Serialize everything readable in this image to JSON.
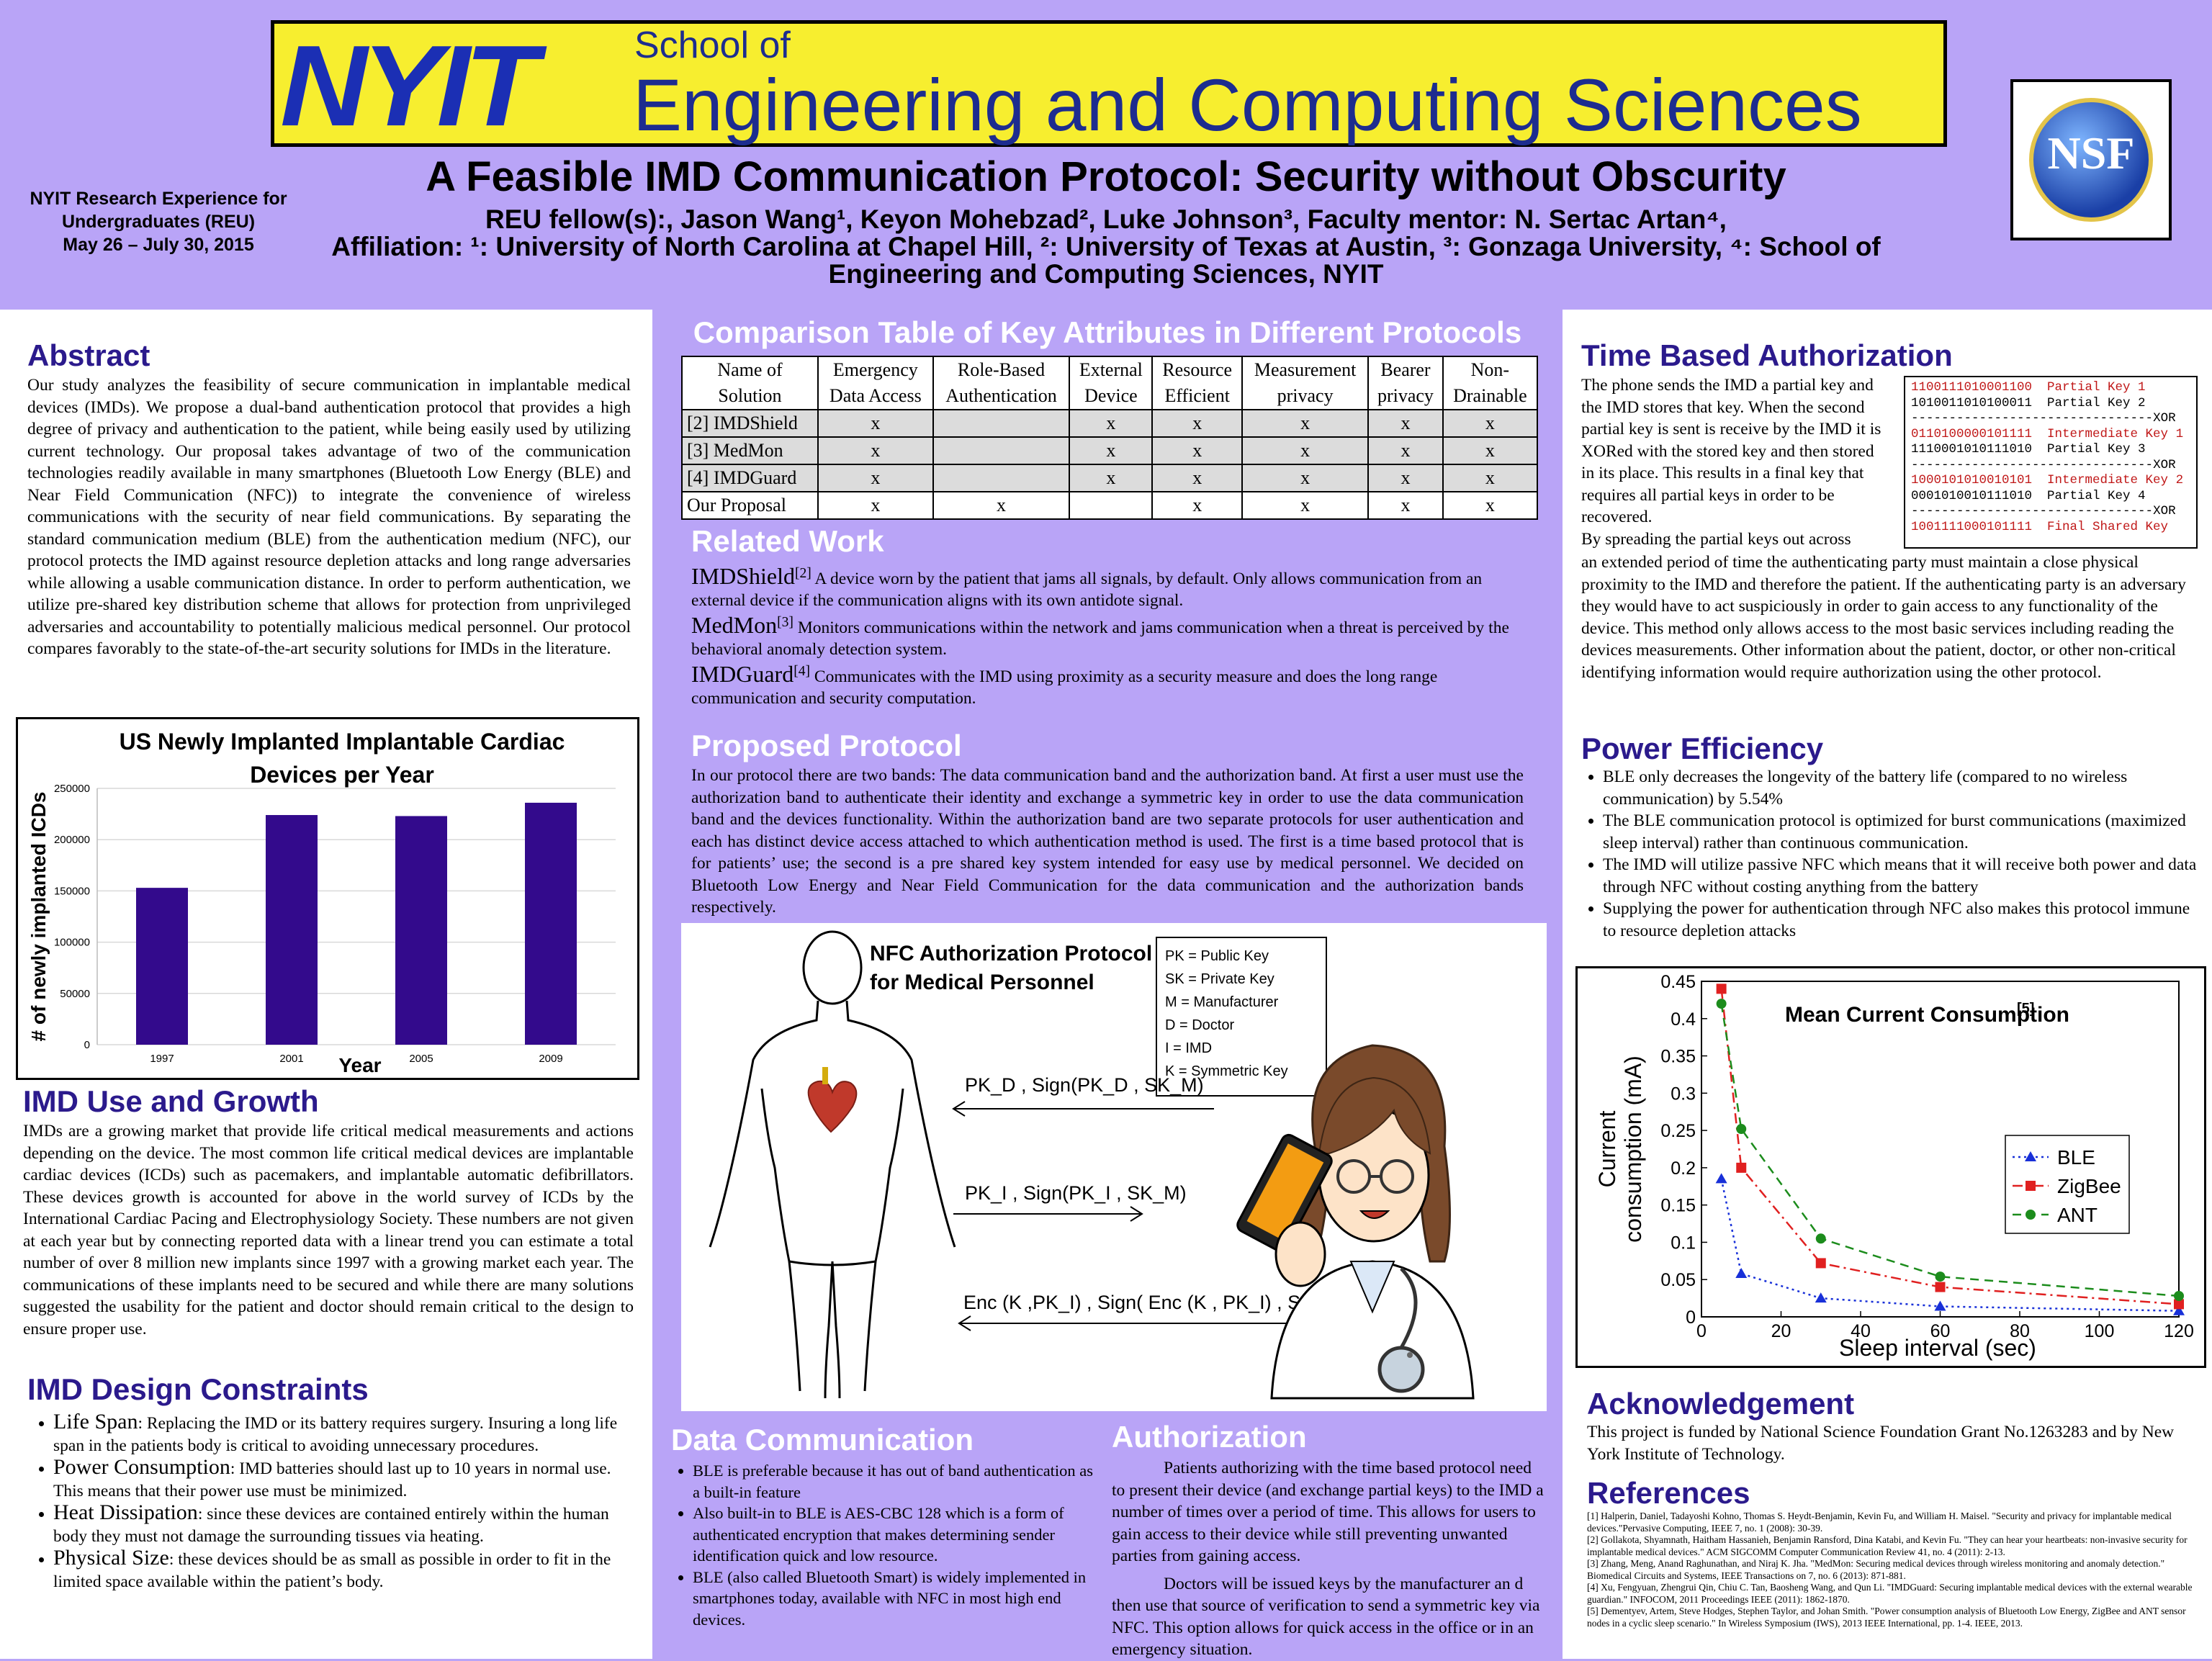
{
  "header": {
    "logo_text": "NYIT",
    "school_of": "School of",
    "school_name": "Engineering and Computing Sciences",
    "nsf_logo_text": "NSF",
    "reu_lines": [
      "NYIT Research Experience for",
      "Undergraduates (REU)",
      "May 26 – July 30, 2015"
    ],
    "title": "A Feasible IMD Communication Protocol: Security without Obscurity",
    "authors_prefix": "REU fellow(s):, Jason Wang",
    "authors_line": "REU fellow(s):, Jason Wang¹, Keyon Mohebzad², Luke Johnson³, Faculty mentor: N. Sertac Artan⁴,",
    "affiliation_line1": "Affiliation: ¹: University of North Carolina at Chapel Hill, ²: University of Texas at Austin, ³: Gonzaga University, ⁴: School of",
    "affiliation_line2": "Engineering and Computing Sciences, NYIT"
  },
  "abstract": {
    "heading": "Abstract",
    "text": "Our study analyzes the feasibility of secure communication in implantable medical devices (IMDs). We propose a dual-band authentication protocol that provides a high degree of privacy and authentication to the patient, while being easily used by utilizing current technology. Our proposal takes advantage of two of the communication technologies readily available in many smartphones (Bluetooth Low Energy (BLE) and Near Field Communication (NFC)) to integrate the convenience of wireless communications with the security of near field communications. By separating the standard communication medium (BLE) from the authentication medium (NFC), our protocol protects the IMD against resource depletion attacks and long range adversaries while allowing a usable communication distance. In order to perform authentication, we utilize pre-shared key distribution scheme that allows for protection from unprivileged adversaries and accountability to potentially malicious medical personnel. Our protocol compares favorably to the state-of-the-art security solutions for IMDs in the literature."
  },
  "chart_data": [
    {
      "type": "bar",
      "title": "US Newly Implanted Implantable Cardiac Devices per Year",
      "xlabel": "Year",
      "ylabel": "# of newly implanted ICDs",
      "categories": [
        "1997",
        "2001",
        "2005",
        "2009"
      ],
      "values": [
        153000,
        224000,
        223000,
        236000
      ],
      "ylim": [
        0,
        250000
      ],
      "yticks": [
        0,
        50000,
        100000,
        150000,
        200000,
        250000
      ],
      "bar_color": "#330a8c",
      "grid": true
    },
    {
      "type": "line",
      "title": "Mean Current Consumption",
      "title_sup": "[5]",
      "xlabel": "Sleep interval (sec)",
      "ylabel_line1": "Current",
      "ylabel_line2": "consumption (mA)",
      "xlim": [
        0,
        120
      ],
      "ylim": [
        0,
        0.45
      ],
      "xticks": [
        0,
        20,
        40,
        60,
        80,
        100,
        120
      ],
      "yticks": [
        0,
        0.05,
        0.1,
        0.15,
        0.2,
        0.25,
        0.3,
        0.35,
        0.4,
        0.45
      ],
      "ytick_labels": [
        "0",
        "0.05",
        "0.1",
        "0.15",
        "0.2",
        "0.25",
        "0.3",
        "0.35",
        "0.4",
        "0.45"
      ],
      "x": [
        5,
        10,
        30,
        60,
        120
      ],
      "legend_position": "right",
      "series": [
        {
          "name": "BLE",
          "values": [
            0.185,
            0.058,
            0.025,
            0.014,
            0.008
          ],
          "color": "#1830d8",
          "marker": "triangle"
        },
        {
          "name": "ZigBee",
          "values": [
            0.44,
            0.2,
            0.072,
            0.04,
            0.017
          ],
          "color": "#e02020",
          "marker": "square"
        },
        {
          "name": "ANT",
          "values": [
            0.42,
            0.252,
            0.105,
            0.054,
            0.028
          ],
          "color": "#1c8c1c",
          "marker": "circle"
        }
      ]
    }
  ],
  "imd_use": {
    "heading": "IMD Use and Growth",
    "text": "IMDs are a growing market that provide life critical medical measurements and actions depending on the device. The most common life critical medical devices are implantable cardiac devices (ICDs) such as pacemakers, and implantable automatic defibrillators. These devices growth is accounted for above in the world survey of ICDs by the International Cardiac Pacing and Electrophysiology Society. These numbers are not given at each year but by connecting reported data with a linear trend you can estimate a total number of over 8 million new implants since 1997 with a growing market each year. The communications of these implants need to be secured and while there are many solutions suggested the usability for the patient and doctor should remain critical to the design to ensure proper use."
  },
  "constraints": {
    "heading": "IMD Design Constraints",
    "items": [
      {
        "term": "Life Span",
        "text": ": Replacing the IMD or its battery requires surgery. Insuring a long life span in the patients body is critical to avoiding unnecessary procedures."
      },
      {
        "term": "Power Consumption",
        "text": ": IMD batteries should last up to 10 years in normal use. This means that their power use must be minimized."
      },
      {
        "term": "Heat Dissipation",
        "text": ": since these devices are contained entirely within the human body they must not damage the surrounding tissues via heating."
      },
      {
        "term": "Physical Size",
        "text": ": these devices should be as small as possible in order to fit in the limited space available within the patient’s body."
      }
    ]
  },
  "comparison": {
    "heading": "Comparison Table of Key Attributes in Different Protocols",
    "headers": [
      [
        "Name of",
        "Solution"
      ],
      [
        "Emergency",
        "Data Access"
      ],
      [
        "Role-Based",
        "Authentication"
      ],
      [
        "External",
        "Device"
      ],
      [
        "Resource",
        "Efficient"
      ],
      [
        "Measurement",
        "privacy"
      ],
      [
        "Bearer",
        "privacy"
      ],
      [
        "Non-",
        "Drainable"
      ]
    ],
    "rows": [
      [
        "[2] IMDShield",
        "x",
        "",
        "x",
        "x",
        "x",
        "x",
        "x"
      ],
      [
        "[3] MedMon",
        "x",
        "",
        "x",
        "x",
        "x",
        "x",
        "x"
      ],
      [
        "[4] IMDGuard",
        "x",
        "",
        "x",
        "x",
        "x",
        "x",
        "x"
      ],
      [
        "Our Proposal",
        "x",
        "x",
        "",
        "x",
        "x",
        "x",
        "x"
      ]
    ]
  },
  "related": {
    "heading": "Related Work",
    "items": [
      {
        "name": "IMDShield",
        "ref": "[2]",
        "text": " A device worn by the patient that jams all signals, by default. Only allows communication from an external device if the communication aligns with its own antidote signal."
      },
      {
        "name": "MedMon",
        "ref": "[3]",
        "text": " Monitors communications within the network and jams communication when a threat is perceived by the behavioral anomaly detection system."
      },
      {
        "name": "IMDGuard",
        "ref": "[4]",
        "text": " Communicates with the IMD using proximity as a security measure and does the long range communication and security computation."
      }
    ]
  },
  "proposed": {
    "heading": "Proposed Protocol",
    "text": "In our protocol there are two bands: The data communication band and the authorization band. At first a user must use the authorization band to authenticate their identity and exchange a symmetric key in order to use the data communication band and the devices functionality. Within the authorization band are two separate protocols for user authentication and each has distinct device access attached to which authentication method is used. The first is a time based protocol that is for patients’ use; the second is a pre shared key system intended for easy use by medical personnel. We decided on Bluetooth Low Energy and Near Field Communication for the data communication and the authorization bands respectively."
  },
  "nfc_figure": {
    "title_line1": "NFC Authorization Protocol",
    "title_line2": "for Medical Personnel",
    "legend": [
      "PK = Public Key",
      "SK = Private Key",
      "M = Manufacturer",
      "D = Doctor",
      "I = IMD",
      "K = Symmetric Key"
    ],
    "msg1": "PK_D , Sign(PK_D , SK_M)",
    "msg2": "PK_I , Sign(PK_I , SK_M)",
    "msg3": "Enc (K ,PK_I)  , Sign( Enc (K , PK_I) , SK_D )"
  },
  "data_comm": {
    "heading": "Data Communication",
    "items": [
      "BLE is preferable because it has out of band authentication as a built-in feature",
      "Also built-in to BLE is AES-CBC 128 which is a form of authenticated encryption  that makes determining sender identification quick and low resource.",
      "BLE (also called Bluetooth Smart) is widely implemented in smartphones today, available with NFC in most high end devices."
    ]
  },
  "authorization": {
    "heading": "Authorization",
    "p1": "Patients authorizing with the time based protocol need to present their device  (and exchange partial keys) to the IMD a number of times over a period of time. This allows for users to gain access to their device while still preventing unwanted parties from gaining access.",
    "p2": "Doctors will be issued keys by the manufacturer an d then use that source of verification to send a symmetric key via NFC. This option allows for quick access in the office or in an emergency situation."
  },
  "time_auth": {
    "heading": "Time Based Authorization",
    "text_top": "The phone sends the IMD a partial key and the IMD stores that key. When the second partial key is sent is receive by the IMD it is XORed with the stored key and then stored in its place. This results in a final key that requires all partial keys in order to be recovered.",
    "text_top2": "By spreading the partial keys out across",
    "text_bottom": "an extended period of time  the authenticating party must maintain a close physical proximity to the IMD and therefore the patient. If the authenticating party is an adversary they would have to act suspiciously in order to gain access to any functionality of the device.  This method only allows access to the most basic services including reading the devices measurements. Other information about the patient, doctor, or other non-critical identifying information would require authorization using the other protocol.",
    "xor_lines": [
      {
        "bits": "1100111010001100",
        "label": "Partial Key 1",
        "red": true
      },
      {
        "bits": "1010011010100011",
        "label": "Partial Key 2",
        "red": false
      },
      {
        "bits": "--------------------------------",
        "label": "XOR",
        "red": false
      },
      {
        "bits": "0110100000101111",
        "label": "Intermediate Key 1",
        "red": true
      },
      {
        "bits": "1110001010111010",
        "label": "Partial Key 3",
        "red": false
      },
      {
        "bits": "--------------------------------",
        "label": "XOR",
        "red": false
      },
      {
        "bits": "1000101010010101",
        "label": "Intermediate Key 2",
        "red": true
      },
      {
        "bits": "0001010010111010",
        "label": "Partial Key 4",
        "red": false
      },
      {
        "bits": "--------------------------------",
        "label": "XOR",
        "red": false
      },
      {
        "bits": "1001111000101111",
        "label": "Final Shared Key",
        "red": true
      }
    ]
  },
  "power": {
    "heading": "Power Efficiency",
    "items": [
      "BLE only decreases the longevity of the battery life (compared to no wireless communication) by 5.54%",
      "The BLE communication protocol is optimized for burst communications (maximized sleep interval) rather than continuous communication.",
      "The IMD will utilize passive NFC which means that it will receive both power and data through NFC without costing anything from the battery",
      "Supplying the power for authentication through NFC also makes this protocol immune to resource depletion attacks"
    ]
  },
  "acknowledgement": {
    "heading": "Acknowledgement",
    "text": "This project is funded by National Science Foundation Grant No.1263283 and by New York Institute of Technology."
  },
  "references": {
    "heading": "References",
    "items": [
      "[1] Halperin, Daniel, Tadayoshi Kohno, Thomas S. Heydt-Benjamin, Kevin Fu, and William H. Maisel. \"Security and privacy for implantable medical devices.\"Pervasive Computing, IEEE 7, no. 1 (2008): 30-39.",
      "[2] Gollakota, Shyamnath, Haitham Hassanieh, Benjamin Ransford, Dina Katabi, and Kevin Fu. \"They can hear your heartbeats: non-invasive security for implantable medical devices.\" ACM SIGCOMM Computer Communication Review 41, no. 4 (2011): 2-13.",
      "[3] Zhang, Meng, Anand Raghunathan, and Niraj K. Jha. \"MedMon: Securing medical devices through wireless monitoring and anomaly detection.\" Biomedical Circuits and Systems, IEEE Transactions on 7, no. 6 (2013): 871-881.",
      "[4] Xu, Fengyuan, Zhengrui Qin, Chiu C. Tan, Baosheng Wang, and Qun Li. \"IMDGuard: Securing implantable medical devices with the external wearable guardian.\" INFOCOM, 2011 Proceedings IEEE (2011): 1862-1870.",
      "[5] Dementyev, Artem, Steve Hodges, Stephen Taylor, and Johan Smith. \"Power consumption analysis of Bluetooth Low Energy, ZigBee and ANT sensor nodes in a cyclic sleep scenario.\" In Wireless Symposium (IWS), 2013 IEEE International, pp. 1-4. IEEE, 2013."
    ]
  }
}
